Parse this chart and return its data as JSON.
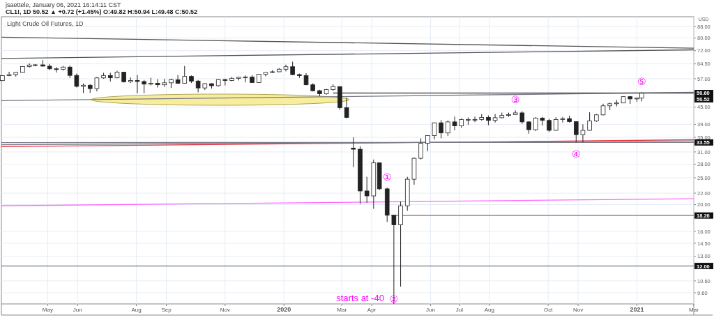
{
  "chart_data": {
    "type": "candlestick",
    "title": "Light Crude Oil Futures, 1D",
    "subtitle": "CL1!, 1D 50.52 ▲ +0.72 (+1.45%) O:49.82 H:50.94 L:49.48 C:50.52",
    "ylabel": "USD",
    "annotations": [
      "jsaettele, January 06, 2021 16:14:11 CST",
      {
        "text": "①",
        "x": "2020-04-17",
        "y": 23
      },
      {
        "text": "②",
        "x": "2020-04-24",
        "y": 8.75
      },
      {
        "text": "③",
        "x": "2020-08-28",
        "y": 43.8
      },
      {
        "text": "④",
        "x": "2020-10-30",
        "y": 33.6
      },
      {
        "text": "⑤",
        "x": "2021-01-06",
        "y": 50.94
      },
      {
        "text": "starts at -40",
        "x": "2020-04-24",
        "y": 8.75
      },
      {
        "text": "50.60",
        "x": "2021-03-01",
        "y": 50.6
      },
      {
        "text": "50.52",
        "x": "2021-03-01",
        "y": 50.52
      },
      {
        "text": "33.55",
        "x": "2021-03-01",
        "y": 33.55
      },
      {
        "text": "18.26",
        "x": "2021-03-01",
        "y": 18.26
      }
    ],
    "x": [
      "2019-03-15",
      "2019-03-22",
      "2019-03-29",
      "2019-04-05",
      "2019-04-12",
      "2019-04-18",
      "2019-04-26",
      "2019-05-03",
      "2019-05-10",
      "2019-05-17",
      "2019-05-24",
      "2019-05-31",
      "2019-06-07",
      "2019-06-14",
      "2019-06-21",
      "2019-06-28",
      "2019-07-05",
      "2019-07-12",
      "2019-07-19",
      "2019-07-26",
      "2019-08-02",
      "2019-08-09",
      "2019-08-16",
      "2019-08-23",
      "2019-08-30",
      "2019-09-06",
      "2019-09-13",
      "2019-09-20",
      "2019-09-27",
      "2019-10-04",
      "2019-10-11",
      "2019-10-18",
      "2019-10-25",
      "2019-11-01",
      "2019-11-08",
      "2019-11-15",
      "2019-11-22",
      "2019-11-29",
      "2019-12-06",
      "2019-12-13",
      "2019-12-20",
      "2019-12-27",
      "2020-01-03",
      "2020-01-10",
      "2020-01-17",
      "2020-01-24",
      "2020-01-31",
      "2020-02-07",
      "2020-02-14",
      "2020-02-21",
      "2020-02-28",
      "2020-03-06",
      "2020-03-13",
      "2020-03-20",
      "2020-03-27",
      "2020-04-03",
      "2020-04-09",
      "2020-04-17",
      "2020-04-24",
      "2020-05-01",
      "2020-05-08",
      "2020-05-15",
      "2020-05-22",
      "2020-05-29",
      "2020-06-05",
      "2020-06-12",
      "2020-06-19",
      "2020-06-26",
      "2020-07-03",
      "2020-07-10",
      "2020-07-17",
      "2020-07-24",
      "2020-07-31",
      "2020-08-07",
      "2020-08-14",
      "2020-08-21",
      "2020-08-28",
      "2020-09-04",
      "2020-09-11",
      "2020-09-18",
      "2020-09-25",
      "2020-10-02",
      "2020-10-09",
      "2020-10-16",
      "2020-10-23",
      "2020-10-30",
      "2020-11-06",
      "2020-11-13",
      "2020-11-20",
      "2020-11-27",
      "2020-12-04",
      "2020-12-11",
      "2020-12-18",
      "2020-12-25",
      "2021-01-01",
      "2021-01-06"
    ],
    "ohlc": [
      [
        56.1,
        58.7,
        56,
        58.5
      ],
      [
        58.5,
        60.4,
        58.2,
        59
      ],
      [
        59,
        60.3,
        58,
        60.1
      ],
      [
        60.1,
        63.2,
        60,
        63.1
      ],
      [
        63.1,
        64.8,
        62.5,
        63.9
      ],
      [
        63.9,
        64.4,
        63.2,
        64
      ],
      [
        64,
        66.6,
        63,
        63.3
      ],
      [
        63.3,
        64.5,
        61.2,
        61.9
      ],
      [
        61.9,
        62.8,
        60,
        61.7
      ],
      [
        61.7,
        63.4,
        61,
        62.8
      ],
      [
        62.8,
        63.6,
        57.4,
        58.6
      ],
      [
        58.6,
        59.5,
        53,
        53.5
      ],
      [
        53.5,
        54.8,
        50.6,
        54
      ],
      [
        54,
        54.5,
        50.7,
        52.5
      ],
      [
        52.5,
        57.8,
        51.3,
        57.4
      ],
      [
        57.4,
        59.9,
        57,
        58.5
      ],
      [
        58.5,
        59.9,
        55.7,
        57.5
      ],
      [
        57.5,
        60.9,
        57.2,
        60.2
      ],
      [
        60.2,
        60.3,
        55.2,
        55.6
      ],
      [
        55.6,
        57.6,
        55,
        56.2
      ],
      [
        56.2,
        58.8,
        50.5,
        55.7
      ],
      [
        55.7,
        56.4,
        50.5,
        54.5
      ],
      [
        54.5,
        57.5,
        53.9,
        54.9
      ],
      [
        54.9,
        56.8,
        53,
        54.2
      ],
      [
        54.2,
        56.9,
        53.3,
        55.1
      ],
      [
        55.1,
        57,
        52.8,
        56.5
      ],
      [
        56.5,
        58.8,
        54.6,
        54.9
      ],
      [
        54.9,
        63.4,
        54.8,
        58.1
      ],
      [
        58.1,
        58.6,
        55,
        55.9
      ],
      [
        55.9,
        56.4,
        50.9,
        52.8
      ],
      [
        52.8,
        54.9,
        51.9,
        54.7
      ],
      [
        54.7,
        54.9,
        52.5,
        53.8
      ],
      [
        53.8,
        56.9,
        53.4,
        56.6
      ],
      [
        56.6,
        57,
        53.9,
        56.2
      ],
      [
        56.2,
        57.9,
        55.8,
        57.2
      ],
      [
        57.2,
        57.9,
        56.2,
        57.7
      ],
      [
        57.7,
        58.6,
        55.3,
        57.8
      ],
      [
        57.8,
        58.7,
        55.2,
        55.2
      ],
      [
        55.2,
        59.3,
        55,
        59.2
      ],
      [
        59.2,
        60.2,
        58.1,
        60.1
      ],
      [
        60.1,
        61.2,
        59.8,
        60.4
      ],
      [
        60.4,
        62.3,
        60.3,
        61.7
      ],
      [
        61.7,
        64.1,
        60.6,
        63
      ],
      [
        63,
        65.7,
        58.7,
        59
      ],
      [
        59,
        59.5,
        57.4,
        58.5
      ],
      [
        58.5,
        59.7,
        54,
        54.2
      ],
      [
        54.2,
        54.9,
        51.3,
        51.6
      ],
      [
        51.6,
        52,
        49.3,
        50.3
      ],
      [
        50.3,
        52.4,
        49.9,
        52.1
      ],
      [
        52.1,
        54.4,
        51.6,
        53.4
      ],
      [
        53.4,
        53.6,
        44,
        44.8
      ],
      [
        44.8,
        48.7,
        41,
        41.3
      ],
      [
        32,
        35,
        27.3,
        31.7
      ],
      [
        31.7,
        32.5,
        20.1,
        22.4
      ],
      [
        22.4,
        25.2,
        20.3,
        21.5
      ],
      [
        21.5,
        29.1,
        19.3,
        28.3
      ],
      [
        28.3,
        28.4,
        22.6,
        22.8
      ],
      [
        22.8,
        23,
        17.3,
        18.3
      ],
      [
        18.3,
        18.3,
        8.75,
        16.9
      ],
      [
        16.9,
        20.5,
        10.1,
        19.8
      ],
      [
        19.8,
        25.2,
        19,
        24.7
      ],
      [
        24.7,
        29.6,
        23.6,
        29.4
      ],
      [
        29.4,
        34.7,
        29.1,
        33.3
      ],
      [
        33.3,
        35.5,
        31.2,
        35.5
      ],
      [
        35.5,
        39.6,
        34.4,
        39.5
      ],
      [
        39.5,
        40.4,
        34.7,
        36.3
      ],
      [
        36.3,
        40.3,
        35.4,
        39.8
      ],
      [
        39.8,
        41.6,
        37.1,
        38.5
      ],
      [
        38.5,
        41,
        37.9,
        40.6
      ],
      [
        40.6,
        41.3,
        38.8,
        40.6
      ],
      [
        40.6,
        41.6,
        39.7,
        40.6
      ],
      [
        40.6,
        42.5,
        40.2,
        41.3
      ],
      [
        41.3,
        42,
        38.7,
        40.3
      ],
      [
        40.3,
        42.5,
        39.6,
        41.2
      ],
      [
        41.2,
        43,
        41,
        42
      ],
      [
        42,
        43,
        41.5,
        42.3
      ],
      [
        42.3,
        43.8,
        42.2,
        42.9
      ],
      [
        42.9,
        43.5,
        39.2,
        39.8
      ],
      [
        39.8,
        40,
        36.1,
        37.3
      ],
      [
        37.3,
        41.4,
        36.9,
        41.1
      ],
      [
        41.1,
        41.5,
        38.6,
        40.3
      ],
      [
        40.3,
        40.9,
        36.6,
        37.1
      ],
      [
        37.1,
        41.4,
        37,
        40.6
      ],
      [
        40.6,
        41.5,
        39.6,
        40.9
      ],
      [
        40.9,
        41.9,
        39.6,
        39.9
      ],
      [
        39.9,
        40,
        33.6,
        35.8
      ],
      [
        35.8,
        39,
        33.6,
        37.1
      ],
      [
        37.1,
        43.1,
        37,
        40.1
      ],
      [
        40.1,
        42.5,
        39.8,
        42.2
      ],
      [
        42.2,
        46.3,
        42,
        45.5
      ],
      [
        45.5,
        46.7,
        43.9,
        46.3
      ],
      [
        46.3,
        47.7,
        45.3,
        46.6
      ],
      [
        46.6,
        49.3,
        46.5,
        49.1
      ],
      [
        49.1,
        49.4,
        46.2,
        48.2
      ],
      [
        48.2,
        48.6,
        47,
        48.5
      ],
      [
        48.5,
        50.94,
        47.2,
        50.52
      ]
    ],
    "series": [
      {
        "type": "line",
        "x": [
          "2019-03-14",
          "2021-03-01"
        ],
        "values": [
          80.5,
          73.5
        ],
        "color": "#555555"
      },
      {
        "type": "line",
        "x": [
          "2019-03-14",
          "2021-03-01"
        ],
        "values": [
          67.5,
          72.5
        ],
        "color": "#555555"
      },
      {
        "type": "line",
        "x": [
          "2019-03-14",
          "2021-03-01"
        ],
        "values": [
          47.5,
          50.9
        ],
        "color": "#787b86"
      },
      {
        "type": "line",
        "x": [
          "2020-02-21",
          "2021-03-01"
        ],
        "values": [
          50.6,
          50.6
        ],
        "color": "#555555"
      },
      {
        "type": "line",
        "x": [
          "2019-03-14",
          "2021-03-01"
        ],
        "values": [
          32.4,
          34.3
        ],
        "color": "#f23645"
      },
      {
        "type": "line",
        "x": [
          "2019-03-14",
          "2021-03-01"
        ],
        "values": [
          32.9,
          34.0
        ],
        "color": "#787b86"
      },
      {
        "type": "line",
        "x": [
          "2019-03-14",
          "2021-03-01"
        ],
        "values": [
          33.5,
          33.55
        ],
        "color": "#787b86"
      },
      {
        "type": "line",
        "x": [
          "2019-03-14",
          "2021-03-01"
        ],
        "values": [
          19.8,
          21.0
        ],
        "color": "#ff66ff"
      },
      {
        "type": "line",
        "x": [
          "2020-04-21",
          "2021-03-01"
        ],
        "values": [
          18.26,
          18.26
        ],
        "color": "#787b86"
      }
    ],
    "ref_lines": [
      {
        "axis": "y",
        "value": 12,
        "label": "12.00",
        "color": "#787b86"
      }
    ],
    "xlim": [
      "2019-03-14",
      "2021-03-01"
    ],
    "xticks": [
      {
        "value": "2019-05-01",
        "label": "May"
      },
      {
        "value": "2019-06-01",
        "label": "Jun"
      },
      {
        "value": "2019-08-01",
        "label": "Aug"
      },
      {
        "value": "2019-09-01",
        "label": "Sep"
      },
      {
        "value": "2019-11-01",
        "label": "Nov"
      },
      {
        "value": "2020-01-01",
        "label": "2020"
      },
      {
        "value": "2020-03-01",
        "label": "Mar"
      },
      {
        "value": "2020-04-01",
        "label": "Apr"
      },
      {
        "value": "2020-06-01",
        "label": "Jun"
      },
      {
        "value": "2020-07-01",
        "label": "Jul"
      },
      {
        "value": "2020-08-01",
        "label": "Aug"
      },
      {
        "value": "2020-10-01",
        "label": "Oct"
      },
      {
        "value": "2020-11-01",
        "label": "Nov"
      },
      {
        "value": "2021-01-01",
        "label": "2021"
      },
      {
        "value": "2021-03-01",
        "label": "Mar"
      }
    ],
    "ylim": [
      8.75,
      95.5
    ],
    "log": true,
    "yticks": [
      {
        "value": 88,
        "label": "88.00"
      },
      {
        "value": 80,
        "label": "80.00"
      },
      {
        "value": 72,
        "label": "72.00"
      },
      {
        "value": 64.5,
        "label": "64.50"
      },
      {
        "value": 57,
        "label": "57.00"
      },
      {
        "value": 45,
        "label": "45.00"
      },
      {
        "value": 39,
        "label": "39.00"
      },
      {
        "value": 35,
        "label": "35.00"
      },
      {
        "value": 31,
        "label": "31.00"
      },
      {
        "value": 28,
        "label": "28.00"
      },
      {
        "value": 25,
        "label": "25.00"
      },
      {
        "value": 22,
        "label": "22.00"
      },
      {
        "value": 20,
        "label": "20.00"
      },
      {
        "value": 16,
        "label": "16.00"
      },
      {
        "value": 14.5,
        "label": "14.50"
      },
      {
        "value": 13,
        "label": "13.00"
      },
      {
        "value": 10.6,
        "label": "10.60"
      },
      {
        "value": 9.6,
        "label": "9.60"
      }
    ],
    "grid": true
  }
}
